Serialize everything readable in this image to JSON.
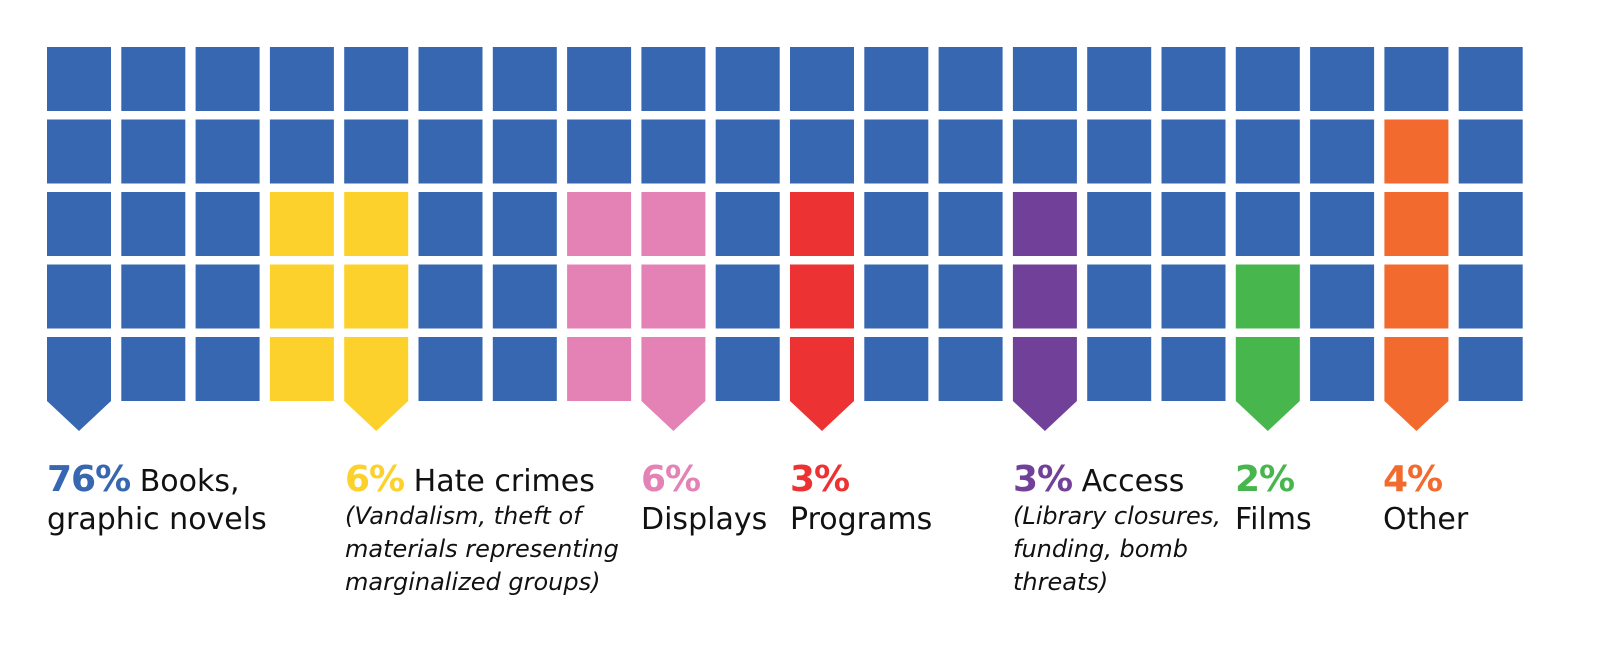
{
  "chart_data": {
    "type": "waffle",
    "grid": {
      "columns": 20,
      "rows": 5
    },
    "base_color": "#3867b2",
    "categories": [
      {
        "name": "Books, graphic novels",
        "value": 76,
        "label": "76%",
        "name_line1": "Books,",
        "name_line2": "graphic novels",
        "note_lines": [],
        "color": "#3867b2",
        "columns": [
          0
        ],
        "row_start": 4
      },
      {
        "name": "Hate crimes",
        "value": 6,
        "label": "6%",
        "name_line1": "Hate crimes",
        "name_line2": "",
        "note_lines": [
          "(Vandalism, theft of",
          "materials representing",
          "marginalized groups)"
        ],
        "color": "#fdd12b",
        "columns": [
          3,
          4
        ],
        "row_start": 2
      },
      {
        "name": "Displays",
        "value": 6,
        "label": "6%",
        "name_line1": "",
        "name_line2": "Displays",
        "note_lines": [],
        "color": "#e482b6",
        "columns": [
          7,
          8
        ],
        "row_start": 2
      },
      {
        "name": "Programs",
        "value": 3,
        "label": "3%",
        "name_line1": "",
        "name_line2": "Programs",
        "note_lines": [],
        "color": "#ec3232",
        "columns": [
          10
        ],
        "row_start": 2
      },
      {
        "name": "Access",
        "value": 3,
        "label": "3%",
        "name_line1": "Access",
        "name_line2": "",
        "note_lines": [
          "(Library closures,",
          "funding, bomb",
          "threats)"
        ],
        "color": "#714199",
        "columns": [
          13
        ],
        "row_start": 2
      },
      {
        "name": "Films",
        "value": 2,
        "label": "2%",
        "name_line1": "",
        "name_line2": "Films",
        "note_lines": [],
        "color": "#47b64d",
        "columns": [
          16
        ],
        "row_start": 3
      },
      {
        "name": "Other",
        "value": 4,
        "label": "4%",
        "name_line1": "",
        "name_line2": "Other",
        "note_lines": [],
        "color": "#f26a2e",
        "columns": [
          18
        ],
        "row_start": 1
      }
    ],
    "pointer_columns": [
      0,
      4,
      8,
      10,
      13,
      16,
      18
    ]
  }
}
